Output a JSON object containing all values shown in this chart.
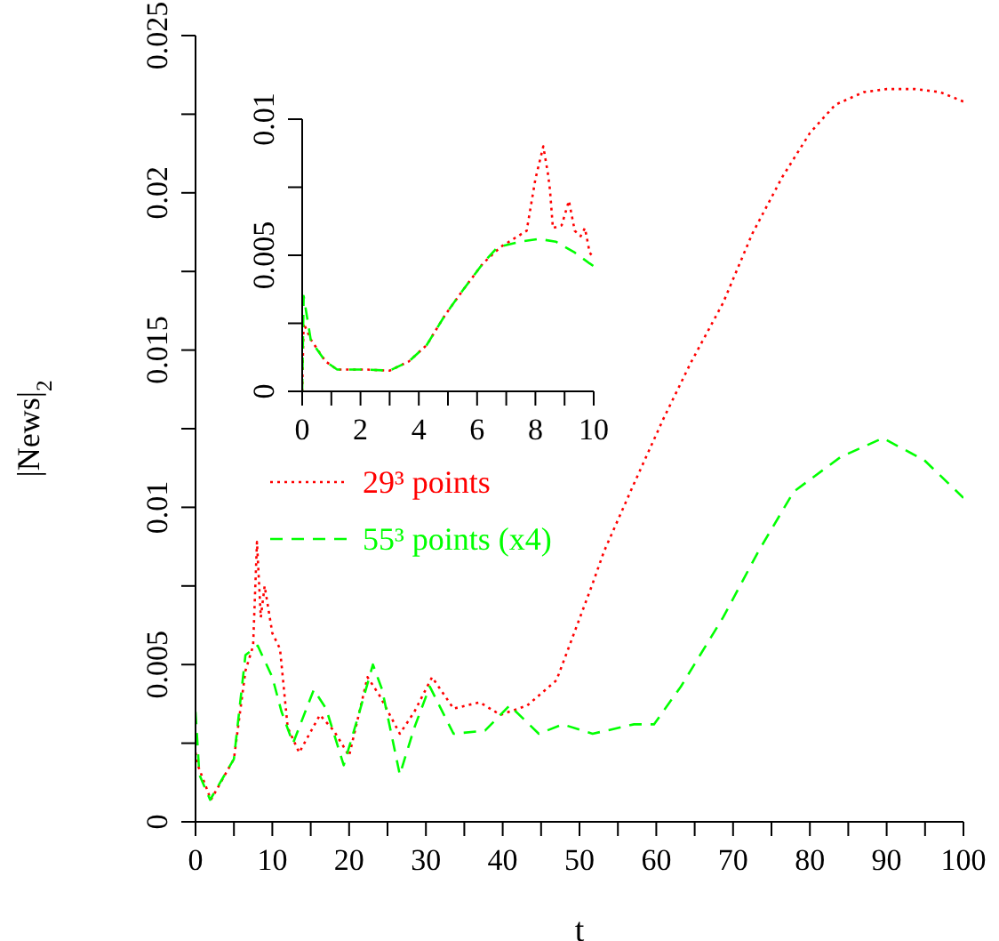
{
  "chart_data": [
    {
      "type": "line",
      "xlabel": "t",
      "ylabel": "|News|$_{2}$",
      "xlim": [
        0,
        100
      ],
      "ylim": [
        0,
        0.025
      ],
      "xticks": [
        0,
        {
          "value": 5,
          "label": null
        },
        10,
        {
          "value": 15,
          "label": null
        },
        20,
        {
          "value": 25,
          "label": null
        },
        30,
        {
          "value": 35,
          "label": null
        },
        40,
        {
          "value": 45,
          "label": null
        },
        50,
        {
          "value": 55,
          "label": null
        },
        60,
        {
          "value": 65,
          "label": null
        },
        70,
        {
          "value": 75,
          "label": null
        },
        80,
        {
          "value": 85,
          "label": null
        },
        90,
        {
          "value": 95,
          "label": null
        },
        100
      ],
      "yticks": [
        0,
        {
          "value": 0.0025,
          "label": null
        },
        0.005,
        {
          "value": 0.0075,
          "label": null
        },
        0.01,
        {
          "value": 0.0125,
          "label": null
        },
        0.015,
        {
          "value": 0.0175,
          "label": null
        },
        0.02,
        {
          "value": 0.0225,
          "label": null
        },
        0.025
      ],
      "legend": "left",
      "marker": "none",
      "grid": false,
      "series": [
        {
          "name": "29³ points",
          "color": "#ff0000",
          "line_style": "dotted",
          "x": [
            0,
            0.3,
            2,
            5,
            6.5,
            7.5,
            8,
            8.5,
            9,
            10,
            11,
            12,
            13.5,
            16.2,
            18,
            20,
            22.4,
            24,
            26.6,
            28.5,
            30.8,
            33.6,
            37,
            39.7,
            43.2,
            47,
            51.6,
            53.2,
            57,
            60.9,
            64.5,
            68.7,
            72.5,
            76.4,
            80,
            83.3,
            87,
            90,
            93.7,
            97,
            100
          ],
          "values": [
            0.0022,
            0.0018,
            0.0007,
            0.002,
            0.0048,
            0.0056,
            0.0089,
            0.0065,
            0.0075,
            0.006,
            0.0055,
            0.003,
            0.0022,
            0.0034,
            0.0029,
            0.0021,
            0.0046,
            0.004,
            0.0028,
            0.0035,
            0.0046,
            0.0036,
            0.0038,
            0.0034,
            0.0037,
            0.0045,
            0.0075,
            0.0086,
            0.0107,
            0.0128,
            0.0146,
            0.0165,
            0.0187,
            0.0205,
            0.0219,
            0.0228,
            0.0232,
            0.0233,
            0.0233,
            0.0232,
            0.0229
          ]
        },
        {
          "name": "55³ points (x4)",
          "color": "#00ff00",
          "line_style": "dashed",
          "x": [
            0,
            0.5,
            1.9,
            5,
            6.5,
            8.1,
            10,
            11.2,
            12.7,
            15.4,
            17,
            19.3,
            21,
            23.1,
            24.3,
            26.6,
            28.5,
            30.5,
            33.6,
            37.7,
            40.9,
            44.7,
            47.8,
            51.7,
            57.1,
            59.7,
            63.2,
            68.7,
            73.3,
            77.9,
            84,
            89.5,
            94.9,
            100
          ],
          "values": [
            0.0035,
            0.0015,
            0.0007,
            0.002,
            0.0053,
            0.0056,
            0.0046,
            0.0035,
            0.0025,
            0.0042,
            0.0036,
            0.0018,
            0.0032,
            0.005,
            0.0042,
            0.0015,
            0.003,
            0.0043,
            0.0028,
            0.0029,
            0.0037,
            0.0028,
            0.0031,
            0.0028,
            0.0031,
            0.0031,
            0.0043,
            0.0065,
            0.0086,
            0.0105,
            0.0116,
            0.0122,
            0.0115,
            0.0103
          ]
        }
      ]
    },
    {
      "type": "line",
      "xlim": [
        0,
        10
      ],
      "ylim": [
        0,
        0.01
      ],
      "xticks": [
        0,
        {
          "value": 1,
          "label": null
        },
        2,
        {
          "value": 3,
          "label": null
        },
        4,
        {
          "value": 5,
          "label": null
        },
        6,
        {
          "value": 7,
          "label": null
        },
        8,
        {
          "value": 9,
          "label": null
        },
        10
      ],
      "yticks": [
        0,
        {
          "value": 0.0025,
          "label": null
        },
        0.005,
        {
          "value": 0.0075,
          "label": null
        },
        0.01
      ],
      "marker": "none",
      "grid": false,
      "series": [
        {
          "color": "#ff0000",
          "line_style": "dotted",
          "x": [
            0,
            0.05,
            0.3,
            0.8,
            1.2,
            2.2,
            3,
            3.66,
            4.27,
            4.9,
            5.5,
            6.2,
            6.8,
            7.7,
            8,
            8.27,
            8.43,
            8.5,
            8.6,
            8.9,
            9.15,
            9.35,
            9.55,
            9.7,
            9.86,
            10
          ],
          "values": [
            0,
            0.0025,
            0.0019,
            0.0011,
            0.0008,
            0.0008,
            0.00076,
            0.0011,
            0.0017,
            0.0028,
            0.0037,
            0.0047,
            0.0053,
            0.0059,
            0.0078,
            0.009,
            0.008,
            0.0074,
            0.006,
            0.0061,
            0.007,
            0.0059,
            0.0057,
            0.006,
            0.0051,
            0.0049
          ]
        },
        {
          "color": "#00ff00",
          "line_style": "dashed",
          "x": [
            0,
            0.05,
            0.3,
            0.8,
            1.2,
            2.2,
            3,
            3.66,
            4.27,
            4.9,
            5.5,
            6.2,
            6.7,
            7.5,
            8.1,
            8.7,
            9.35,
            9.86,
            10
          ],
          "values": [
            0,
            0.0035,
            0.00185,
            0.0011,
            0.0008,
            0.0008,
            0.00076,
            0.0011,
            0.0017,
            0.0028,
            0.0037,
            0.0047,
            0.0053,
            0.0055,
            0.0056,
            0.0055,
            0.0051,
            0.0047,
            0.0046
          ]
        }
      ]
    }
  ]
}
